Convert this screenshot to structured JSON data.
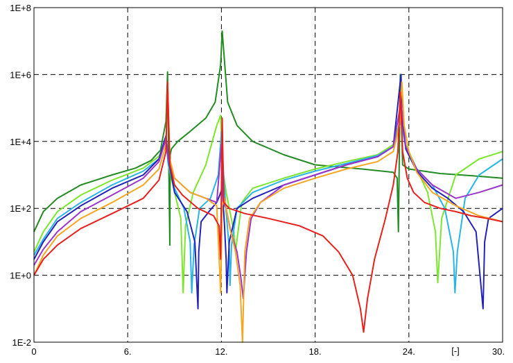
{
  "chart_data": {
    "type": "line",
    "title": "",
    "xlabel": "[-]",
    "ylabel": "",
    "xlim": [
      0,
      30
    ],
    "ylim": [
      0.01,
      100000000
    ],
    "yscale": "log",
    "grid": true,
    "x_ticks": [
      {
        "value": 0,
        "label": "0"
      },
      {
        "value": 6,
        "label": "6."
      },
      {
        "value": 12,
        "label": "12."
      },
      {
        "value": 18,
        "label": "18."
      },
      {
        "value": 24,
        "label": "24."
      },
      {
        "value": 30,
        "label": "30."
      }
    ],
    "y_ticks": [
      {
        "value": 0.01,
        "label": "1E-2"
      },
      {
        "value": 1,
        "label": "1E+0"
      },
      {
        "value": 100,
        "label": "1E+2"
      },
      {
        "value": 10000,
        "label": "1E+4"
      },
      {
        "value": 1000000,
        "label": "1E+6"
      },
      {
        "value": 100000000,
        "label": "1E+8"
      }
    ],
    "series": [
      {
        "name": "series-darkgreen",
        "color": "#228b22",
        "x": [
          0,
          0.6,
          1.5,
          3,
          5,
          6.5,
          7.5,
          8.1,
          8.45,
          8.55,
          8.7,
          8.72,
          8.8,
          9.2,
          10,
          11,
          11.6,
          11.95,
          12.05,
          12.4,
          13,
          14,
          16,
          18,
          21,
          23,
          23.25,
          23.33,
          23.45,
          23.6,
          24,
          26,
          28,
          30
        ],
        "y": [
          20,
          80,
          200,
          500,
          1000,
          1600,
          2700,
          5500,
          40000,
          1200000,
          8,
          4000,
          6000,
          10000,
          20000,
          50000,
          150000,
          2000000,
          20000000,
          150000,
          30000,
          10000,
          4000,
          2000,
          1500,
          1200,
          800,
          20,
          1000000,
          2000,
          1500,
          1100,
          950,
          800
        ]
      },
      {
        "name": "series-lightgreen",
        "color": "#7ce62e",
        "x": [
          0,
          0.6,
          1.5,
          3,
          5,
          7,
          8,
          8.45,
          8.6,
          9,
          9.4,
          9.55,
          9.7,
          10.2,
          11,
          11.7,
          11.95,
          12.05,
          12.3,
          12.6,
          12.8,
          12.9,
          13.3,
          14,
          16,
          18,
          20,
          22,
          23,
          23.5,
          23.8,
          24.5,
          25.2,
          25.7,
          25.85,
          26.1,
          27,
          28.5,
          30
        ],
        "y": [
          5,
          20,
          80,
          250,
          700,
          1600,
          3600,
          12000,
          2000,
          300,
          50,
          0.3,
          30,
          300,
          2000,
          30000,
          60000,
          2000,
          300,
          60,
          20,
          5,
          150,
          400,
          800,
          1500,
          2500,
          4000,
          8000,
          50000,
          8000,
          1500,
          300,
          20,
          0.6,
          50,
          1000,
          3000,
          5000
        ]
      },
      {
        "name": "series-cyan",
        "color": "#29b4e6",
        "x": [
          0,
          0.6,
          1.5,
          3,
          5,
          7,
          8,
          8.45,
          8.6,
          9,
          9.6,
          10,
          10.1,
          10.25,
          10.6,
          11.3,
          11.8,
          12,
          12.15,
          12.3,
          12.5,
          12.55,
          12.65,
          13,
          14,
          16,
          18,
          20,
          22,
          23,
          23.5,
          23.8,
          24.5,
          25.5,
          26.3,
          26.85,
          26.95,
          27.1,
          27.6,
          28.5,
          30
        ],
        "y": [
          4,
          12,
          50,
          150,
          500,
          1300,
          3000,
          11000,
          2000,
          400,
          100,
          10,
          0.3,
          8,
          100,
          200,
          1000,
          20000,
          800,
          80,
          6,
          0.5,
          8,
          100,
          300,
          700,
          1300,
          2200,
          3800,
          7000,
          40000,
          7000,
          1500,
          500,
          100,
          5,
          0.3,
          5,
          200,
          1000,
          3000
        ]
      },
      {
        "name": "series-navy",
        "color": "#2222bb",
        "x": [
          0,
          0.6,
          1.5,
          3,
          5,
          7,
          8,
          8.45,
          8.6,
          9,
          9.8,
          10.3,
          10.5,
          10.55,
          10.7,
          11.2,
          11.7,
          11.9,
          12.05,
          12.2,
          12.3,
          12.35,
          12.5,
          13,
          14,
          16,
          18,
          20,
          22,
          23,
          23.5,
          23.55,
          23.8,
          24.5,
          25.5,
          26.5,
          27.5,
          28.3,
          28.75,
          28.85,
          29.1,
          30
        ],
        "y": [
          3,
          10,
          40,
          120,
          400,
          1000,
          3000,
          15000,
          3000,
          300,
          80,
          10,
          0.1,
          5,
          40,
          80,
          150,
          250,
          400,
          30,
          3,
          0.3,
          10,
          100,
          200,
          500,
          1000,
          2000,
          3500,
          7000,
          1000000,
          60000,
          6000,
          1300,
          400,
          200,
          80,
          20,
          0.1,
          10,
          50,
          100
        ]
      },
      {
        "name": "series-purple",
        "color": "#9b35c9",
        "x": [
          0,
          0.6,
          1.5,
          3,
          5,
          7,
          8,
          8.45,
          8.6,
          9,
          10,
          11,
          11.7,
          12,
          12.1,
          12.3,
          12.6,
          13,
          13.25,
          13.4,
          13.6,
          13.9,
          14.5,
          16,
          18,
          20,
          22,
          23,
          23.5,
          23.8,
          24.5,
          25.5,
          27,
          28.5,
          30
        ],
        "y": [
          2,
          6,
          20,
          80,
          250,
          800,
          2500,
          12000,
          3000,
          800,
          300,
          200,
          150,
          8000,
          150,
          100,
          20,
          5,
          0.8,
          0.2,
          5,
          50,
          150,
          500,
          1000,
          2000,
          3500,
          7000,
          150000,
          7000,
          1500,
          500,
          200,
          300,
          500
        ]
      },
      {
        "name": "series-orange",
        "color": "#f5a623",
        "x": [
          0,
          0.6,
          1.5,
          3,
          5,
          7,
          8,
          8.45,
          8.55,
          8.7,
          9,
          10,
          11,
          11.7,
          11.95,
          12.05,
          12.2,
          12.5,
          12.9,
          13.2,
          13.35,
          13.5,
          13.8,
          14.5,
          16,
          18,
          20,
          22,
          23,
          23.4,
          23.55,
          23.7,
          24,
          24.5,
          25.5,
          27,
          28.5,
          30
        ],
        "y": [
          1,
          4,
          15,
          50,
          150,
          500,
          1500,
          8000,
          600000,
          3000,
          800,
          300,
          200,
          120,
          0.3,
          120,
          200,
          30,
          5,
          0.5,
          0.01,
          5,
          50,
          150,
          400,
          800,
          1500,
          2500,
          5000,
          30000,
          600000,
          30000,
          5000,
          1200,
          300,
          120,
          60,
          40
        ]
      },
      {
        "name": "series-red",
        "color": "#e8201c",
        "x": [
          0,
          0.6,
          1.5,
          3,
          5,
          7,
          8,
          8.45,
          8.55,
          8.7,
          9,
          9.5,
          10.5,
          11.5,
          11.85,
          11.95,
          12.05,
          12.15,
          12.5,
          13.5,
          15,
          17,
          18.5,
          19.5,
          20.4,
          20.9,
          21.1,
          21.35,
          21.8,
          22.5,
          23,
          23.3,
          23.45,
          23.6,
          23.9,
          24.3,
          25,
          26,
          27,
          28,
          29,
          30
        ],
        "y": [
          1,
          3,
          8,
          25,
          70,
          200,
          700,
          5000,
          600000,
          2000,
          500,
          250,
          100,
          60,
          30,
          3,
          50000,
          150,
          100,
          70,
          50,
          30,
          15,
          5,
          1,
          0.1,
          0.02,
          0.2,
          3,
          50,
          500,
          5000,
          300000,
          5000,
          800,
          300,
          150,
          100,
          80,
          60,
          50,
          40
        ]
      }
    ]
  }
}
